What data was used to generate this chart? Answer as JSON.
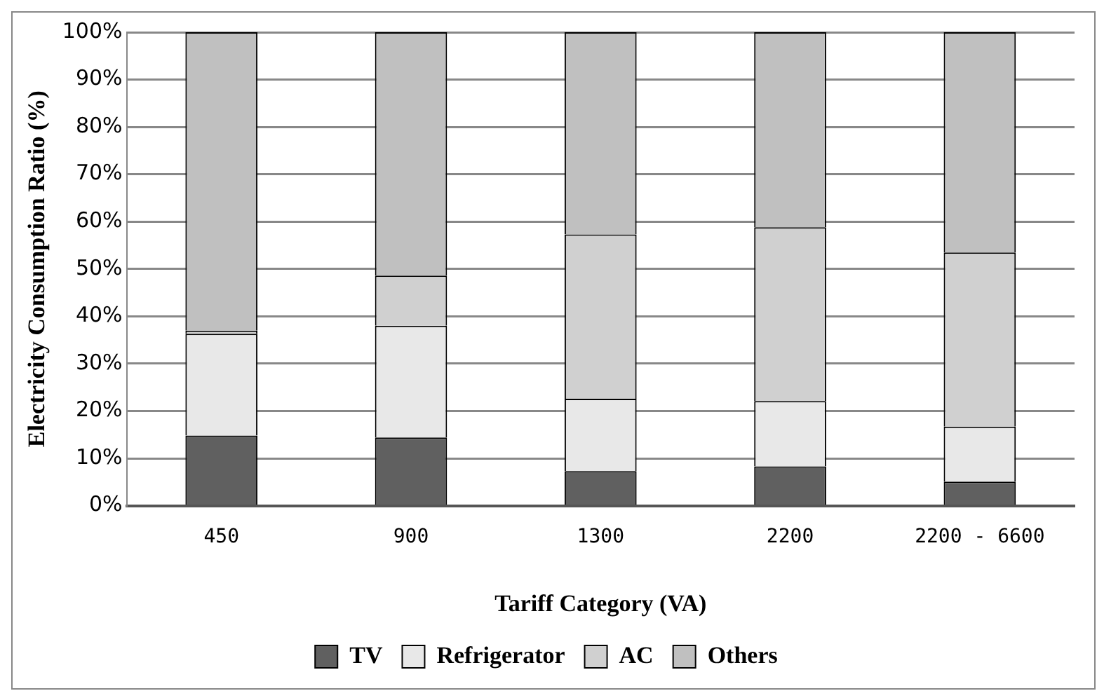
{
  "chart_data": {
    "type": "bar",
    "stacked": true,
    "xlabel": "Tariff Category (VA)",
    "ylabel": "Electricity Consumption Ratio (%)",
    "categories": [
      "450",
      "900",
      "1300",
      "2200",
      "2200 - 6600"
    ],
    "series": [
      {
        "name": "TV",
        "color": "#606060",
        "values": [
          14.8,
          14.4,
          7.3,
          8.3,
          5.1
        ]
      },
      {
        "name": "Refrigerator",
        "color": "#e8e8e8",
        "values": [
          21.5,
          23.6,
          15.3,
          13.8,
          11.6
        ]
      },
      {
        "name": "AC",
        "color": "#d0d0d0",
        "values": [
          0.7,
          10.6,
          34.7,
          36.7,
          36.8
        ]
      },
      {
        "name": "Others",
        "color": "#c0c0c0",
        "values": [
          63.0,
          51.4,
          42.7,
          41.2,
          46.5
        ]
      }
    ],
    "ylim": [
      0,
      100
    ],
    "yticks": [
      {
        "value": 0,
        "label": "0%"
      },
      {
        "value": 10,
        "label": "10%"
      },
      {
        "value": 20,
        "label": "20%"
      },
      {
        "value": 30,
        "label": "30%"
      },
      {
        "value": 40,
        "label": "40%"
      },
      {
        "value": 50,
        "label": "50%"
      },
      {
        "value": 60,
        "label": "60%"
      },
      {
        "value": 70,
        "label": "70%"
      },
      {
        "value": 80,
        "label": "80%"
      },
      {
        "value": 90,
        "label": "90%"
      },
      {
        "value": 100,
        "label": "100%"
      }
    ],
    "grid": "y",
    "legend": "bottom"
  }
}
